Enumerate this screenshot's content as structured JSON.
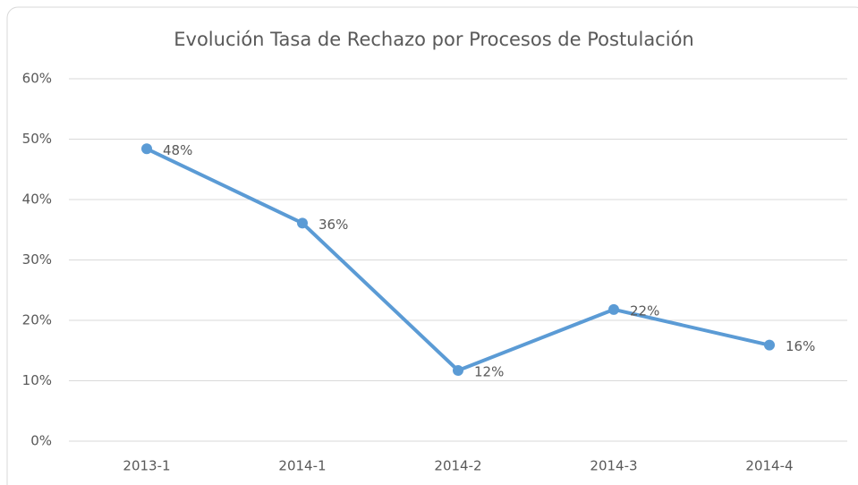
{
  "chart_data": {
    "type": "line",
    "title": "Evolución Tasa de Rechazo por Procesos de Postulación",
    "categories": [
      "2013-1",
      "2014-1",
      "2014-2",
      "2014-3",
      "2014-4"
    ],
    "values": [
      48.4,
      36.1,
      11.7,
      21.8,
      15.9
    ],
    "value_labels": [
      "48%",
      "36%",
      "12%",
      "22%",
      "16%"
    ],
    "color": "#5b9bd5",
    "ylim": [
      0,
      60
    ],
    "yticks": [
      {
        "value": 0,
        "label": "0%"
      },
      {
        "value": 10,
        "label": "10%"
      },
      {
        "value": 20,
        "label": "20%"
      },
      {
        "value": 30,
        "label": "30%"
      },
      {
        "value": 40,
        "label": "40%"
      },
      {
        "value": 50,
        "label": "50%"
      },
      {
        "value": 60,
        "label": "60%"
      }
    ],
    "grid": true
  }
}
